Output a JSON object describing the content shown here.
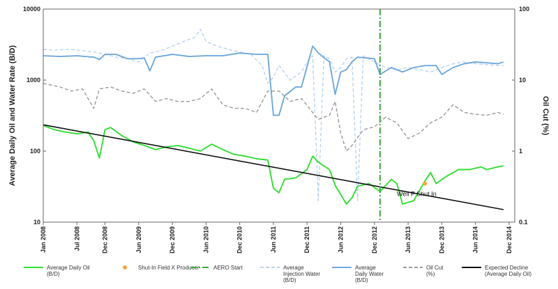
{
  "chart_data": {
    "type": "line",
    "ylabel": "Average Daily Oil and Water Rate (B/D)",
    "y2label": "Oil Cut (%)",
    "y_scale": "log",
    "y2_scale": "log",
    "ylim": [
      10,
      10000
    ],
    "y2lim": [
      0.1,
      100
    ],
    "xlim": [
      "2008-01",
      "2015-01"
    ],
    "y_ticks": [
      "10",
      "100",
      "1000",
      "10000"
    ],
    "y2_ticks": [
      "0.1",
      "1",
      "10",
      "100"
    ],
    "x_ticks": [
      {
        "date": "2008-01",
        "label": "Jan 2008"
      },
      {
        "date": "2008-07",
        "label": "Jul 2008"
      },
      {
        "date": "2008-12",
        "label": "Dec 2008"
      },
      {
        "date": "2009-06",
        "label": "Jun 2009"
      },
      {
        "date": "2009-12",
        "label": "Dec 2009"
      },
      {
        "date": "2010-06",
        "label": "Jun 2010"
      },
      {
        "date": "2010-12",
        "label": "Dec 2010"
      },
      {
        "date": "2011-06",
        "label": "Jun 2011"
      },
      {
        "date": "2011-12",
        "label": "Dec 2011"
      },
      {
        "date": "2012-06",
        "label": "Jun 2012"
      },
      {
        "date": "2012-12",
        "label": "Dec 2012"
      },
      {
        "date": "2013-06",
        "label": "Jun 2013"
      },
      {
        "date": "2013-12",
        "label": "Dec 2013"
      },
      {
        "date": "2014-06",
        "label": "Jun 2014"
      },
      {
        "date": "2014-12",
        "label": "Dec 2014"
      }
    ],
    "grid": {
      "x": false,
      "y": false
    },
    "legend_position": "bottom",
    "annotations": [
      {
        "text": "Well P Shut In",
        "x": "2013-04",
        "y": 25
      }
    ],
    "series": [
      {
        "name": "Average Injection Water (B/D)",
        "legend_label": "Average\nInjection Water\n(B/D)",
        "axis": "left",
        "color": "#b9d3ee",
        "dash": "dash",
        "points": [
          [
            "2008-01",
            2700
          ],
          [
            "2008-03",
            2650
          ],
          [
            "2008-06",
            2700
          ],
          [
            "2008-08",
            2600
          ],
          [
            "2008-10",
            2500
          ],
          [
            "2008-12",
            2300
          ],
          [
            "2009-02",
            2100
          ],
          [
            "2009-04",
            2000
          ],
          [
            "2009-06",
            1800
          ],
          [
            "2009-08",
            2400
          ],
          [
            "2009-10",
            2600
          ],
          [
            "2009-12",
            3000
          ],
          [
            "2010-02",
            3500
          ],
          [
            "2010-04",
            4000
          ],
          [
            "2010-05",
            5200
          ],
          [
            "2010-06",
            3500
          ],
          [
            "2010-08",
            3000
          ],
          [
            "2010-10",
            2700
          ],
          [
            "2010-12",
            2500
          ],
          [
            "2011-02",
            2300
          ],
          [
            "2011-04",
            1600
          ],
          [
            "2011-05",
            900
          ],
          [
            "2011-06",
            1100
          ],
          [
            "2011-07",
            1600
          ],
          [
            "2011-09",
            1000
          ],
          [
            "2011-11",
            1300
          ],
          [
            "2011-12",
            1800
          ],
          [
            "2012-01",
            2200
          ],
          [
            "2012-02",
            20
          ],
          [
            "2012-03",
            2200
          ],
          [
            "2012-04",
            2000
          ],
          [
            "2012-05",
            1300
          ],
          [
            "2012-06",
            1500
          ],
          [
            "2012-07",
            2000
          ],
          [
            "2012-08",
            2100
          ],
          [
            "2012-09",
            20
          ],
          [
            "2012-10",
            2200
          ],
          [
            "2012-12",
            1800
          ],
          [
            "2013-02",
            1500
          ],
          [
            "2013-04",
            1400
          ],
          [
            "2013-06",
            1500
          ],
          [
            "2013-08",
            1400
          ],
          [
            "2013-10",
            1300
          ],
          [
            "2013-12",
            1500
          ],
          [
            "2014-02",
            1700
          ],
          [
            "2014-04",
            1800
          ],
          [
            "2014-06",
            1700
          ],
          [
            "2014-08",
            1650
          ],
          [
            "2014-10",
            1600
          ],
          [
            "2014-11",
            1600
          ]
        ]
      },
      {
        "name": "Average Daily Water (B/D)",
        "legend_label": "Average\nDaily Water\n(B/D)",
        "axis": "left",
        "color": "#6fa8dc",
        "dash": "solid",
        "points": [
          [
            "2008-01",
            2200
          ],
          [
            "2008-04",
            2150
          ],
          [
            "2008-07",
            2200
          ],
          [
            "2008-10",
            2100
          ],
          [
            "2008-11",
            1950
          ],
          [
            "2008-12",
            2300
          ],
          [
            "2009-02",
            2300
          ],
          [
            "2009-04",
            2000
          ],
          [
            "2009-06",
            2000
          ],
          [
            "2009-07",
            2050
          ],
          [
            "2009-08",
            1350
          ],
          [
            "2009-09",
            2100
          ],
          [
            "2009-12",
            2300
          ],
          [
            "2010-03",
            2150
          ],
          [
            "2010-06",
            2200
          ],
          [
            "2010-09",
            2200
          ],
          [
            "2010-12",
            2400
          ],
          [
            "2011-03",
            2300
          ],
          [
            "2011-05",
            2300
          ],
          [
            "2011-06",
            320
          ],
          [
            "2011-07",
            320
          ],
          [
            "2011-08",
            600
          ],
          [
            "2011-10",
            800
          ],
          [
            "2011-11",
            800
          ],
          [
            "2012-01",
            3000
          ],
          [
            "2012-02",
            2400
          ],
          [
            "2012-04",
            1800
          ],
          [
            "2012-05",
            630
          ],
          [
            "2012-06",
            1300
          ],
          [
            "2012-07",
            1400
          ],
          [
            "2012-08",
            1800
          ],
          [
            "2012-09",
            2100
          ],
          [
            "2012-12",
            2000
          ],
          [
            "2013-01",
            1200
          ],
          [
            "2013-03",
            1500
          ],
          [
            "2013-05",
            1300
          ],
          [
            "2013-07",
            1500
          ],
          [
            "2013-09",
            1600
          ],
          [
            "2013-11",
            1600
          ],
          [
            "2013-12",
            1200
          ],
          [
            "2014-02",
            1500
          ],
          [
            "2014-04",
            1700
          ],
          [
            "2014-06",
            1800
          ],
          [
            "2014-08",
            1750
          ],
          [
            "2014-10",
            1700
          ],
          [
            "2014-11",
            1800
          ]
        ]
      },
      {
        "name": "Oil Cut (%)",
        "legend_label": "Oil Cut\n(%)",
        "axis": "right",
        "color": "#9a9a9a",
        "dash": "dash",
        "points": [
          [
            "2008-01",
            9
          ],
          [
            "2008-04",
            8
          ],
          [
            "2008-06",
            7
          ],
          [
            "2008-08",
            7.5
          ],
          [
            "2008-10",
            4
          ],
          [
            "2008-11",
            7.5
          ],
          [
            "2009-01",
            8
          ],
          [
            "2009-03",
            7
          ],
          [
            "2009-05",
            6.5
          ],
          [
            "2009-07",
            7.5
          ],
          [
            "2009-09",
            5
          ],
          [
            "2009-11",
            5.5
          ],
          [
            "2010-01",
            5
          ],
          [
            "2010-03",
            5
          ],
          [
            "2010-05",
            5.5
          ],
          [
            "2010-07",
            7.5
          ],
          [
            "2010-09",
            4.5
          ],
          [
            "2010-11",
            4
          ],
          [
            "2011-01",
            4
          ],
          [
            "2011-03",
            3.5
          ],
          [
            "2011-05",
            7
          ],
          [
            "2011-07",
            7
          ],
          [
            "2011-09",
            5
          ],
          [
            "2011-11",
            5.5
          ],
          [
            "2012-01",
            3.5
          ],
          [
            "2012-02",
            2.8
          ],
          [
            "2012-04",
            3.2
          ],
          [
            "2012-05",
            5
          ],
          [
            "2012-06",
            1.8
          ],
          [
            "2012-07",
            1
          ],
          [
            "2012-08",
            1.2
          ],
          [
            "2012-10",
            2
          ],
          [
            "2012-12",
            2.2
          ],
          [
            "2013-02",
            3
          ],
          [
            "2013-04",
            2.5
          ],
          [
            "2013-06",
            1.5
          ],
          [
            "2013-08",
            1.8
          ],
          [
            "2013-10",
            2.5
          ],
          [
            "2013-12",
            3
          ],
          [
            "2014-02",
            4.5
          ],
          [
            "2014-04",
            3.5
          ],
          [
            "2014-06",
            3.3
          ],
          [
            "2014-08",
            3.2
          ],
          [
            "2014-10",
            3.5
          ],
          [
            "2014-11",
            3.3
          ]
        ]
      },
      {
        "name": "Average Daily Oil (B/D)",
        "legend_label": "Average Daily Oil\n(B/D)",
        "axis": "left",
        "color": "#33dd33",
        "dash": "solid",
        "points": [
          [
            "2008-01",
            230
          ],
          [
            "2008-03",
            200
          ],
          [
            "2008-05",
            185
          ],
          [
            "2008-07",
            175
          ],
          [
            "2008-09",
            185
          ],
          [
            "2008-10",
            140
          ],
          [
            "2008-11",
            80
          ],
          [
            "2008-12",
            200
          ],
          [
            "2009-01",
            215
          ],
          [
            "2009-03",
            165
          ],
          [
            "2009-05",
            135
          ],
          [
            "2009-07",
            120
          ],
          [
            "2009-09",
            105
          ],
          [
            "2009-11",
            115
          ],
          [
            "2010-01",
            120
          ],
          [
            "2010-03",
            110
          ],
          [
            "2010-05",
            100
          ],
          [
            "2010-07",
            125
          ],
          [
            "2010-09",
            105
          ],
          [
            "2010-11",
            90
          ],
          [
            "2011-01",
            85
          ],
          [
            "2011-03",
            78
          ],
          [
            "2011-05",
            75
          ],
          [
            "2011-06",
            30
          ],
          [
            "2011-07",
            26
          ],
          [
            "2011-08",
            40
          ],
          [
            "2011-10",
            42
          ],
          [
            "2011-12",
            55
          ],
          [
            "2012-01",
            85
          ],
          [
            "2012-02",
            70
          ],
          [
            "2012-04",
            55
          ],
          [
            "2012-05",
            33
          ],
          [
            "2012-07",
            18
          ],
          [
            "2012-08",
            22
          ],
          [
            "2012-09",
            32
          ],
          [
            "2012-11",
            35
          ],
          [
            "2013-01",
            27
          ],
          [
            "2013-03",
            40
          ],
          [
            "2013-04",
            35
          ],
          [
            "2013-05",
            18
          ],
          [
            "2013-07",
            20
          ],
          [
            "2013-09",
            38
          ],
          [
            "2013-10",
            50
          ],
          [
            "2013-11",
            35
          ],
          [
            "2014-01",
            45
          ],
          [
            "2014-03",
            55
          ],
          [
            "2014-05",
            55
          ],
          [
            "2014-07",
            60
          ],
          [
            "2014-08",
            55
          ],
          [
            "2014-10",
            60
          ],
          [
            "2014-11",
            62
          ]
        ]
      },
      {
        "name": "Expected Decline (Average Daily Oil)",
        "legend_label": "Expected Decline\n(Average Daily Oil)",
        "axis": "left",
        "color": "#111111",
        "dash": "solid",
        "points": [
          [
            "2008-01",
            235
          ],
          [
            "2014-11",
            15
          ]
        ]
      },
      {
        "name": "Shut-In Field X Producer",
        "legend_label": "Shut-In Field X Producer",
        "axis": "left",
        "color": "#f4a640",
        "type": "scatter",
        "points": [
          [
            "2013-09",
            35
          ]
        ]
      },
      {
        "name": "AERO Start",
        "legend_label": "AERO Start",
        "axis": "left",
        "color": "#3aa83a",
        "type": "vline",
        "dash": "dashdot",
        "x": "2013-01"
      }
    ]
  }
}
